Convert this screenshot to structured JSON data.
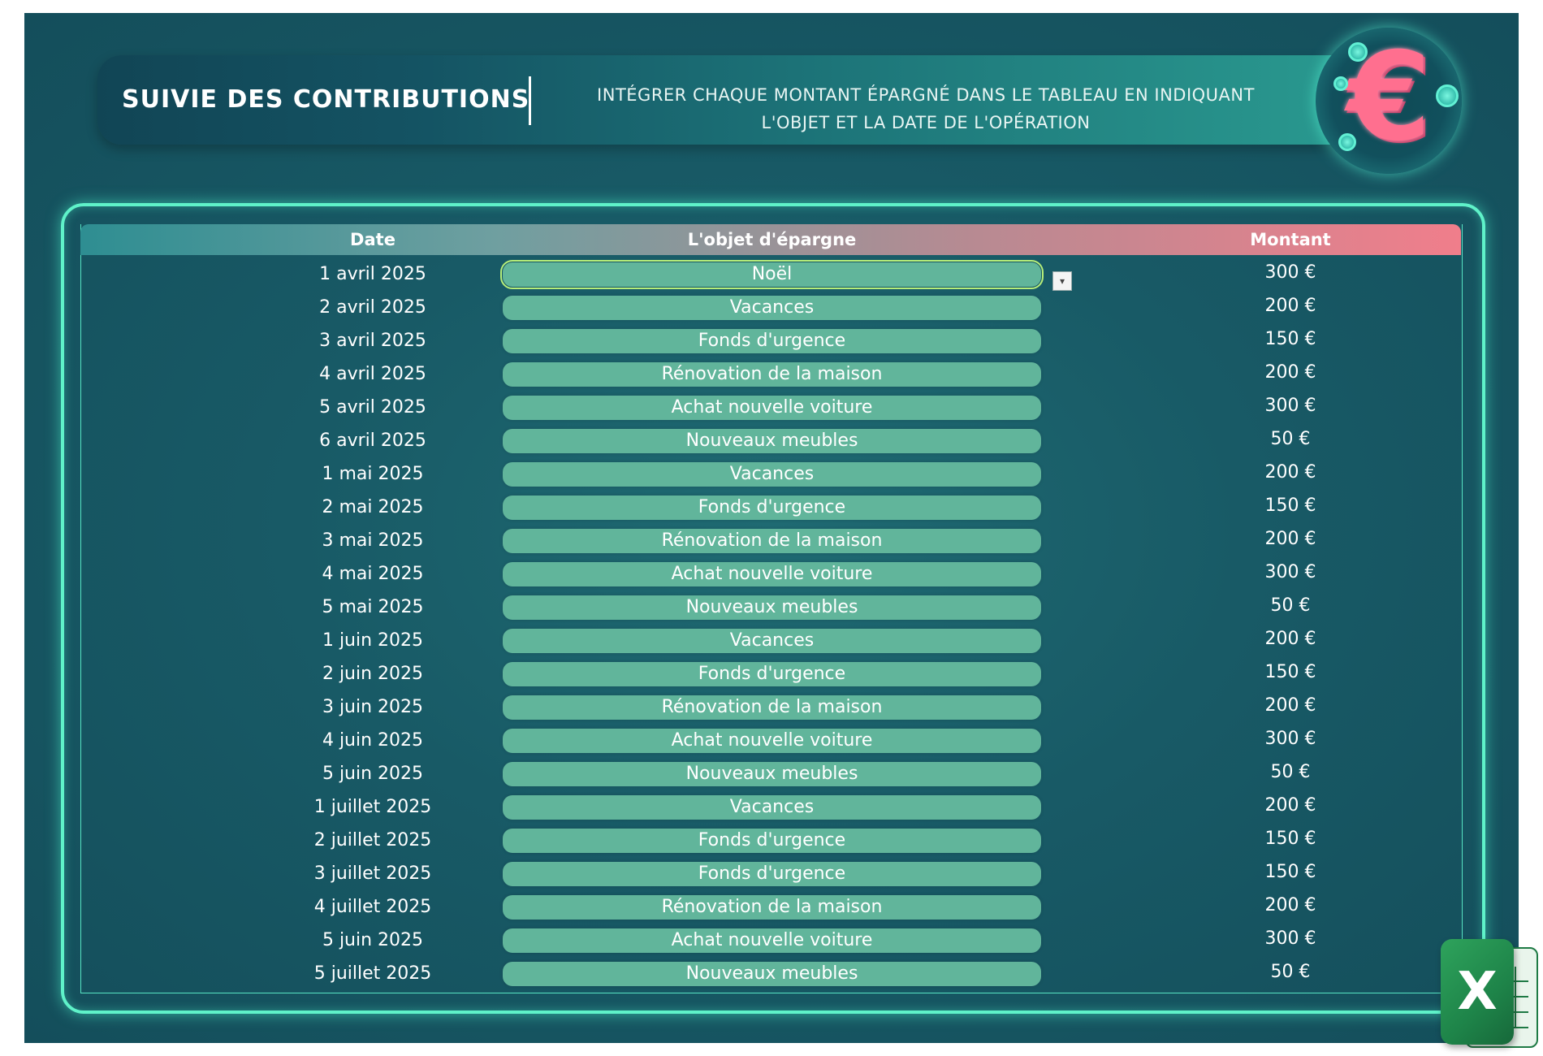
{
  "header": {
    "title": "SUIVIE DES CONTRIBUTIONS",
    "subtitle_line1": "INTÉGRER CHAQUE MONTANT ÉPARGNÉ DANS LE TABLEAU EN INDIQUANT",
    "subtitle_line2": "L'OBJET ET LA DATE DE L'OPÉRATION",
    "logo_symbol": "€"
  },
  "table": {
    "columns": [
      "Date",
      "L'objet d'épargne",
      "Montant"
    ],
    "rows": [
      {
        "date": "1 avril 2025",
        "objet": "Noël",
        "montant": "300 €"
      },
      {
        "date": "2 avril 2025",
        "objet": "Vacances",
        "montant": "200 €"
      },
      {
        "date": "3 avril 2025",
        "objet": "Fonds d'urgence",
        "montant": "150 €"
      },
      {
        "date": "4 avril 2025",
        "objet": "Rénovation de la maison",
        "montant": "200 €"
      },
      {
        "date": "5 avril 2025",
        "objet": "Achat nouvelle voiture",
        "montant": "300 €"
      },
      {
        "date": "6 avril 2025",
        "objet": "Nouveaux meubles",
        "montant": "50 €"
      },
      {
        "date": "1 mai 2025",
        "objet": "Vacances",
        "montant": "200 €"
      },
      {
        "date": "2 mai 2025",
        "objet": "Fonds d'urgence",
        "montant": "150 €"
      },
      {
        "date": "3 mai 2025",
        "objet": "Rénovation de la maison",
        "montant": "200 €"
      },
      {
        "date": "4 mai 2025",
        "objet": "Achat nouvelle voiture",
        "montant": "300 €"
      },
      {
        "date": "5 mai 2025",
        "objet": "Nouveaux meubles",
        "montant": "50 €"
      },
      {
        "date": "1 juin 2025",
        "objet": "Vacances",
        "montant": "200 €"
      },
      {
        "date": "2 juin 2025",
        "objet": "Fonds d'urgence",
        "montant": "150 €"
      },
      {
        "date": "3 juin 2025",
        "objet": "Rénovation de la maison",
        "montant": "200 €"
      },
      {
        "date": "4 juin 2025",
        "objet": "Achat nouvelle voiture",
        "montant": "300 €"
      },
      {
        "date": "5 juin 2025",
        "objet": "Nouveaux meubles",
        "montant": "50 €"
      },
      {
        "date": "1 juillet 2025",
        "objet": "Vacances",
        "montant": "200 €"
      },
      {
        "date": "2 juillet 2025",
        "objet": "Fonds d'urgence",
        "montant": "150 €"
      },
      {
        "date": "3 juillet 2025",
        "objet": "Fonds d'urgence",
        "montant": "150 €"
      },
      {
        "date": "4 juillet 2025",
        "objet": "Rénovation de la maison",
        "montant": "200 €"
      },
      {
        "date": "5 juin 2025",
        "objet": "Achat nouvelle voiture",
        "montant": "300 €"
      },
      {
        "date": "5 juillet 2025",
        "objet": "Nouveaux meubles",
        "montant": "50 €"
      }
    ]
  },
  "dropdown": {
    "arrow_icon": "chevron-down-icon",
    "glyph": "▾"
  },
  "excel_badge": {
    "letter": "X",
    "icon": "excel-icon"
  },
  "colors": {
    "background": "#185a66",
    "pill": "#61b59b",
    "frame_glow": "#5ff2c9",
    "header_start": "#2e8e92",
    "header_end": "#f07e8b"
  }
}
